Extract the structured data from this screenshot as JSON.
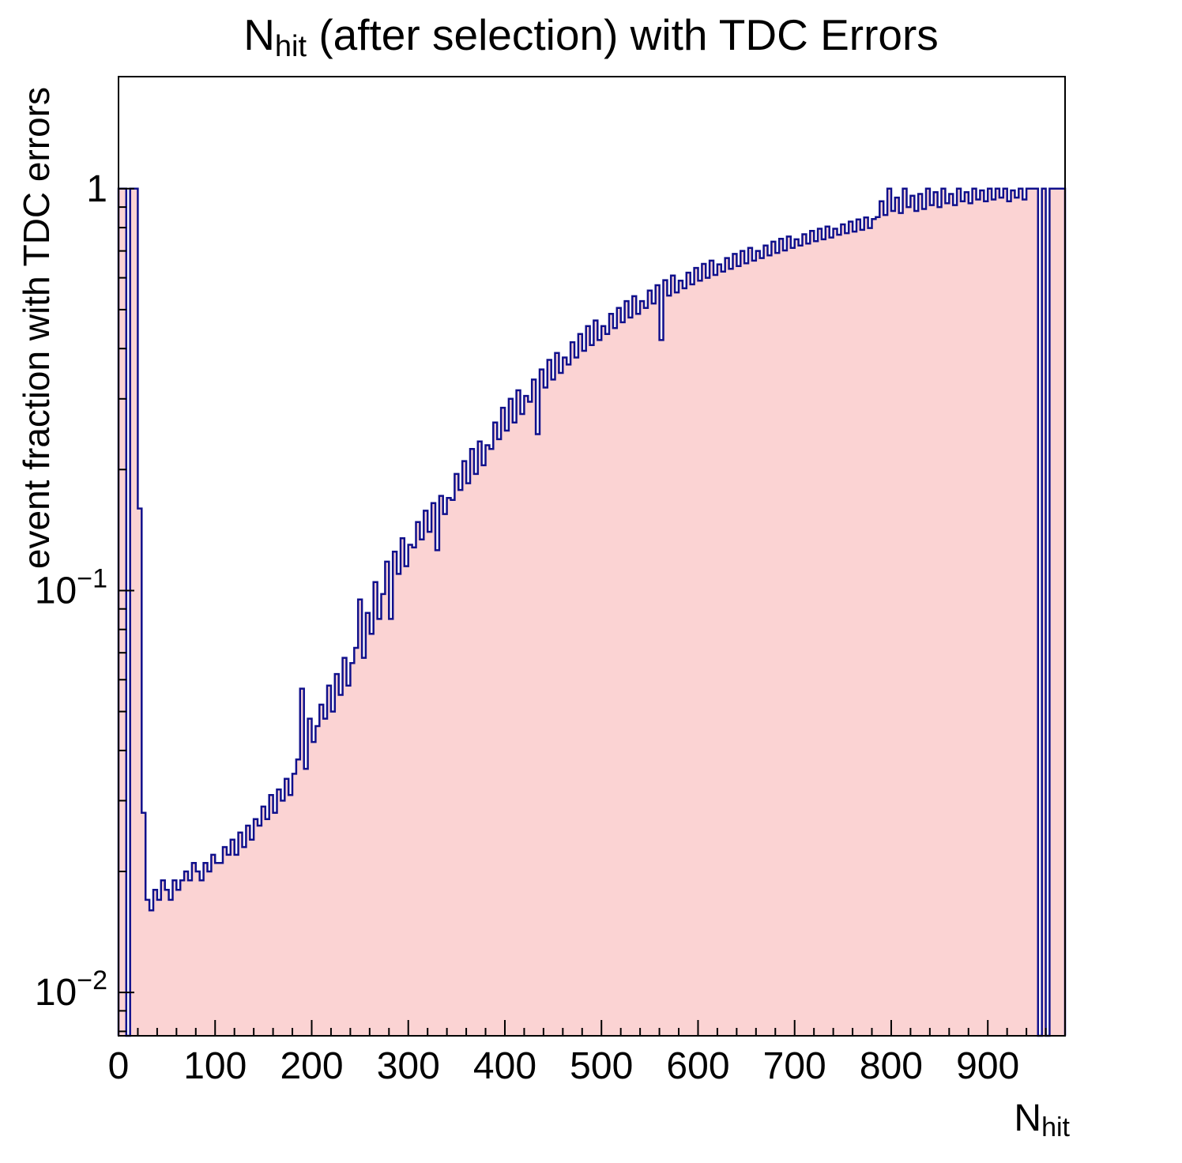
{
  "title": {
    "prefix": "N",
    "subscript": "hit",
    "suffix": " (after selection) with TDC Errors"
  },
  "axes": {
    "x": {
      "title_prefix": "N",
      "title_subscript": "hit",
      "min": 0,
      "max": 980,
      "major_ticks": [
        0,
        100,
        200,
        300,
        400,
        500,
        600,
        700,
        800,
        900
      ],
      "minor_step": 20
    },
    "y": {
      "title": "event fraction with TDC errors",
      "scale": "log",
      "min": 0.0078,
      "max": 1.9,
      "ticks": [
        {
          "v": 1,
          "t": "1"
        },
        {
          "v": 0.1,
          "t": "10^−1"
        },
        {
          "v": 0.01,
          "t": "10^−2"
        }
      ]
    }
  },
  "style": {
    "fill_color": "#fbd3d3",
    "line_color": "#10108c",
    "frame_color": "#000000",
    "text_color": "#000000",
    "background": "#ffffff"
  },
  "chart_data": {
    "type": "histogram",
    "title": "N_hit (after selection) with TDC Errors",
    "xlabel": "N_hit",
    "ylabel": "event fraction with TDC errors",
    "y_scale": "log",
    "xlim": [
      0,
      980
    ],
    "ylim": [
      0.0078,
      1.9
    ],
    "x_start": 0,
    "bin_width": 4,
    "n_bins": 245,
    "values": [
      1.0,
      1.0,
      0,
      1.0,
      1.0,
      0.16,
      0.028,
      0.017,
      0.016,
      0.018,
      0.017,
      0.019,
      0.018,
      0.017,
      0.019,
      0.018,
      0.019,
      0.02,
      0.019,
      0.021,
      0.02,
      0.019,
      0.021,
      0.02,
      0.022,
      0.021,
      0.021,
      0.023,
      0.022,
      0.024,
      0.022,
      0.025,
      0.023,
      0.026,
      0.024,
      0.027,
      0.026,
      0.029,
      0.027,
      0.031,
      0.028,
      0.032,
      0.03,
      0.034,
      0.031,
      0.035,
      0.038,
      0.057,
      0.036,
      0.048,
      0.042,
      0.046,
      0.052,
      0.048,
      0.058,
      0.05,
      0.062,
      0.055,
      0.068,
      0.058,
      0.066,
      0.072,
      0.095,
      0.068,
      0.088,
      0.078,
      0.105,
      0.085,
      0.098,
      0.118,
      0.085,
      0.125,
      0.11,
      0.135,
      0.115,
      0.13,
      0.128,
      0.148,
      0.134,
      0.158,
      0.14,
      0.165,
      0.126,
      0.172,
      0.155,
      0.17,
      0.168,
      0.195,
      0.178,
      0.21,
      0.185,
      0.225,
      0.195,
      0.235,
      0.205,
      0.23,
      0.225,
      0.262,
      0.238,
      0.285,
      0.25,
      0.3,
      0.262,
      0.315,
      0.275,
      0.305,
      0.295,
      0.335,
      0.245,
      0.355,
      0.32,
      0.375,
      0.335,
      0.39,
      0.348,
      0.38,
      0.365,
      0.415,
      0.38,
      0.435,
      0.395,
      0.455,
      0.408,
      0.47,
      0.42,
      0.455,
      0.435,
      0.488,
      0.45,
      0.505,
      0.465,
      0.525,
      0.478,
      0.54,
      0.488,
      0.525,
      0.505,
      0.558,
      0.518,
      0.575,
      0.42,
      0.592,
      0.542,
      0.608,
      0.552,
      0.59,
      0.565,
      0.618,
      0.578,
      0.635,
      0.59,
      0.65,
      0.6,
      0.662,
      0.61,
      0.648,
      0.622,
      0.672,
      0.632,
      0.688,
      0.642,
      0.7,
      0.652,
      0.712,
      0.662,
      0.7,
      0.672,
      0.722,
      0.682,
      0.738,
      0.692,
      0.75,
      0.702,
      0.76,
      0.712,
      0.748,
      0.722,
      0.77,
      0.73,
      0.785,
      0.74,
      0.795,
      0.748,
      0.805,
      0.756,
      0.795,
      0.768,
      0.815,
      0.775,
      0.828,
      0.782,
      0.838,
      0.79,
      0.848,
      0.798,
      0.84,
      0.85,
      0.93,
      0.86,
      1.0,
      0.88,
      0.95,
      0.87,
      1.0,
      0.9,
      0.96,
      0.88,
      0.97,
      0.89,
      1.0,
      0.91,
      0.98,
      0.9,
      1.0,
      0.92,
      0.97,
      0.91,
      1.0,
      0.93,
      0.98,
      0.92,
      1.0,
      0.94,
      0.99,
      0.93,
      1.0,
      0.94,
      1.0,
      0.95,
      1.0,
      0.93,
      0.99,
      0.95,
      1.0,
      0.94,
      1.0,
      1.0,
      1.0,
      0,
      1.0,
      0,
      1.0,
      1.0,
      1.0,
      1.0
    ]
  }
}
